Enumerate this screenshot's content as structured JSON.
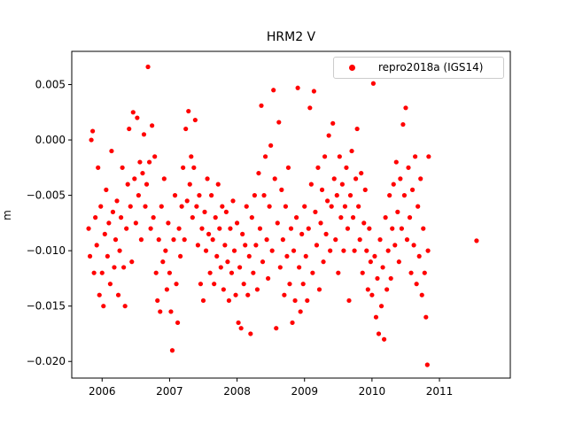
{
  "chart_data": {
    "type": "scatter",
    "title": "HRM2 V",
    "xlabel": "",
    "ylabel": "m",
    "xlim": [
      2005.55,
      2012.05
    ],
    "ylim": [
      -0.0215,
      0.008
    ],
    "x_ticks": [
      {
        "value": 2006,
        "label": "2006"
      },
      {
        "value": 2007,
        "label": "2007"
      },
      {
        "value": 2008,
        "label": "2008"
      },
      {
        "value": 2009,
        "label": "2009"
      },
      {
        "value": 2010,
        "label": "2010"
      },
      {
        "value": 2011,
        "label": "2011"
      }
    ],
    "y_ticks": [
      {
        "value": 0.005,
        "label": "0.005"
      },
      {
        "value": 0.0,
        "label": "0.000"
      },
      {
        "value": -0.005,
        "label": "−0.005"
      },
      {
        "value": -0.01,
        "label": "−0.010"
      },
      {
        "value": -0.015,
        "label": "−0.015"
      },
      {
        "value": -0.02,
        "label": "−0.020"
      }
    ],
    "grid": false,
    "legend_position": "top-right",
    "series": [
      {
        "name": "repro2018a (IGS14)",
        "color": "#ff0000",
        "marker": "dot",
        "points": [
          [
            2005.8,
            -0.008
          ],
          [
            2005.82,
            -0.0105
          ],
          [
            2005.84,
            0.0
          ],
          [
            2005.86,
            0.0008
          ],
          [
            2005.88,
            -0.012
          ],
          [
            2005.9,
            -0.007
          ],
          [
            2005.92,
            -0.0095
          ],
          [
            2005.94,
            -0.0025
          ],
          [
            2005.96,
            -0.014
          ],
          [
            2005.98,
            -0.006
          ],
          [
            2006.0,
            -0.012
          ],
          [
            2006.02,
            -0.015
          ],
          [
            2006.04,
            -0.0085
          ],
          [
            2006.06,
            -0.0045
          ],
          [
            2006.08,
            -0.0105
          ],
          [
            2006.1,
            -0.0075
          ],
          [
            2006.12,
            -0.013
          ],
          [
            2006.14,
            -0.001
          ],
          [
            2006.16,
            -0.0065
          ],
          [
            2006.18,
            -0.0115
          ],
          [
            2006.2,
            -0.009
          ],
          [
            2006.22,
            -0.0055
          ],
          [
            2006.24,
            -0.014
          ],
          [
            2006.26,
            -0.01
          ],
          [
            2006.28,
            -0.007
          ],
          [
            2006.3,
            -0.0025
          ],
          [
            2006.32,
            -0.0115
          ],
          [
            2006.34,
            -0.015
          ],
          [
            2006.36,
            -0.008
          ],
          [
            2006.38,
            -0.004
          ],
          [
            2006.4,
            0.001
          ],
          [
            2006.42,
            -0.006
          ],
          [
            2006.44,
            -0.011
          ],
          [
            2006.46,
            0.0025
          ],
          [
            2006.48,
            -0.0035
          ],
          [
            2006.5,
            -0.0075
          ],
          [
            2006.52,
            0.002
          ],
          [
            2006.54,
            -0.005
          ],
          [
            2006.56,
            -0.002
          ],
          [
            2006.58,
            -0.009
          ],
          [
            2006.6,
            -0.003
          ],
          [
            2006.62,
            0.0005
          ],
          [
            2006.64,
            -0.006
          ],
          [
            2006.66,
            -0.004
          ],
          [
            2006.68,
            0.0066
          ],
          [
            2006.7,
            -0.002
          ],
          [
            2006.72,
            -0.008
          ],
          [
            2006.74,
            0.0013
          ],
          [
            2006.76,
            -0.007
          ],
          [
            2006.78,
            -0.0015
          ],
          [
            2006.8,
            -0.012
          ],
          [
            2006.82,
            -0.0145
          ],
          [
            2006.84,
            -0.009
          ],
          [
            2006.86,
            -0.0155
          ],
          [
            2006.88,
            -0.006
          ],
          [
            2006.9,
            -0.011
          ],
          [
            2006.92,
            -0.0035
          ],
          [
            2006.94,
            -0.01
          ],
          [
            2006.96,
            -0.0135
          ],
          [
            2006.98,
            -0.0075
          ],
          [
            2007.0,
            -0.012
          ],
          [
            2007.02,
            -0.0155
          ],
          [
            2007.04,
            -0.019
          ],
          [
            2007.06,
            -0.009
          ],
          [
            2007.08,
            -0.005
          ],
          [
            2007.1,
            -0.013
          ],
          [
            2007.12,
            -0.0165
          ],
          [
            2007.14,
            -0.008
          ],
          [
            2007.16,
            -0.0105
          ],
          [
            2007.18,
            -0.006
          ],
          [
            2007.2,
            -0.0025
          ],
          [
            2007.22,
            -0.009
          ],
          [
            2007.24,
            0.001
          ],
          [
            2007.26,
            -0.0055
          ],
          [
            2007.28,
            0.0026
          ],
          [
            2007.3,
            -0.004
          ],
          [
            2007.32,
            -0.0015
          ],
          [
            2007.34,
            -0.007
          ],
          [
            2007.36,
            -0.0025
          ],
          [
            2007.38,
            0.0018
          ],
          [
            2007.4,
            -0.006
          ],
          [
            2007.42,
            -0.0095
          ],
          [
            2007.44,
            -0.005
          ],
          [
            2007.46,
            -0.013
          ],
          [
            2007.48,
            -0.008
          ],
          [
            2007.5,
            -0.0145
          ],
          [
            2007.52,
            -0.0065
          ],
          [
            2007.54,
            -0.01
          ],
          [
            2007.56,
            -0.0035
          ],
          [
            2007.58,
            -0.0085
          ],
          [
            2007.6,
            -0.012
          ],
          [
            2007.62,
            -0.005
          ],
          [
            2007.64,
            -0.009
          ],
          [
            2007.66,
            -0.013
          ],
          [
            2007.68,
            -0.007
          ],
          [
            2007.7,
            -0.0105
          ],
          [
            2007.72,
            -0.004
          ],
          [
            2007.74,
            -0.008
          ],
          [
            2007.76,
            -0.0115
          ],
          [
            2007.78,
            -0.006
          ],
          [
            2007.8,
            -0.0135
          ],
          [
            2007.82,
            -0.0095
          ],
          [
            2007.84,
            -0.0065
          ],
          [
            2007.86,
            -0.011
          ],
          [
            2007.88,
            -0.0145
          ],
          [
            2007.9,
            -0.008
          ],
          [
            2007.92,
            -0.012
          ],
          [
            2007.94,
            -0.0055
          ],
          [
            2007.96,
            -0.01
          ],
          [
            2007.98,
            -0.014
          ],
          [
            2008.0,
            -0.0075
          ],
          [
            2008.02,
            -0.0165
          ],
          [
            2008.04,
            -0.0115
          ],
          [
            2008.06,
            -0.017
          ],
          [
            2008.08,
            -0.0085
          ],
          [
            2008.1,
            -0.013
          ],
          [
            2008.12,
            -0.0095
          ],
          [
            2008.14,
            -0.006
          ],
          [
            2008.16,
            -0.014
          ],
          [
            2008.18,
            -0.0105
          ],
          [
            2008.2,
            -0.0175
          ],
          [
            2008.22,
            -0.007
          ],
          [
            2008.24,
            -0.012
          ],
          [
            2008.26,
            -0.005
          ],
          [
            2008.28,
            -0.0095
          ],
          [
            2008.3,
            -0.0135
          ],
          [
            2008.32,
            -0.003
          ],
          [
            2008.34,
            -0.008
          ],
          [
            2008.36,
            0.0031
          ],
          [
            2008.38,
            -0.011
          ],
          [
            2008.4,
            -0.005
          ],
          [
            2008.42,
            -0.0015
          ],
          [
            2008.44,
            -0.009
          ],
          [
            2008.46,
            -0.0125
          ],
          [
            2008.48,
            -0.006
          ],
          [
            2008.5,
            -0.0005
          ],
          [
            2008.52,
            -0.01
          ],
          [
            2008.54,
            0.0045
          ],
          [
            2008.56,
            -0.0035
          ],
          [
            2008.58,
            -0.017
          ],
          [
            2008.6,
            -0.0075
          ],
          [
            2008.62,
            0.0016
          ],
          [
            2008.64,
            -0.0115
          ],
          [
            2008.66,
            -0.0045
          ],
          [
            2008.68,
            -0.009
          ],
          [
            2008.7,
            -0.014
          ],
          [
            2008.72,
            -0.006
          ],
          [
            2008.74,
            -0.0105
          ],
          [
            2008.76,
            -0.0025
          ],
          [
            2008.78,
            -0.013
          ],
          [
            2008.8,
            -0.008
          ],
          [
            2008.82,
            -0.0165
          ],
          [
            2008.84,
            -0.01
          ],
          [
            2008.86,
            -0.0145
          ],
          [
            2008.88,
            -0.007
          ],
          [
            2008.9,
            0.0047
          ],
          [
            2008.92,
            -0.0115
          ],
          [
            2008.94,
            -0.0155
          ],
          [
            2008.96,
            -0.0085
          ],
          [
            2008.98,
            -0.013
          ],
          [
            2009.0,
            -0.006
          ],
          [
            2009.02,
            -0.0105
          ],
          [
            2009.04,
            -0.0145
          ],
          [
            2009.06,
            -0.008
          ],
          [
            2009.08,
            0.0029
          ],
          [
            2009.1,
            -0.004
          ],
          [
            2009.12,
            -0.012
          ],
          [
            2009.14,
            0.0044
          ],
          [
            2009.16,
            -0.0065
          ],
          [
            2009.18,
            -0.0095
          ],
          [
            2009.2,
            -0.0025
          ],
          [
            2009.22,
            -0.0135
          ],
          [
            2009.24,
            -0.0075
          ],
          [
            2009.26,
            -0.0045
          ],
          [
            2009.28,
            -0.011
          ],
          [
            2009.3,
            -0.0015
          ],
          [
            2009.32,
            -0.0085
          ],
          [
            2009.34,
            -0.0055
          ],
          [
            2009.36,
            0.0004
          ],
          [
            2009.38,
            -0.01
          ],
          [
            2009.4,
            -0.006
          ],
          [
            2009.42,
            0.0015
          ],
          [
            2009.44,
            -0.0035
          ],
          [
            2009.46,
            -0.009
          ],
          [
            2009.48,
            -0.005
          ],
          [
            2009.5,
            -0.012
          ],
          [
            2009.52,
            -0.0015
          ],
          [
            2009.54,
            -0.007
          ],
          [
            2009.56,
            -0.004
          ],
          [
            2009.58,
            -0.01
          ],
          [
            2009.6,
            -0.006
          ],
          [
            2009.62,
            -0.0025
          ],
          [
            2009.64,
            -0.008
          ],
          [
            2009.66,
            -0.0145
          ],
          [
            2009.68,
            -0.005
          ],
          [
            2009.7,
            -0.001
          ],
          [
            2009.72,
            -0.007
          ],
          [
            2009.74,
            -0.01
          ],
          [
            2009.76,
            -0.0035
          ],
          [
            2009.78,
            0.001
          ],
          [
            2009.8,
            -0.006
          ],
          [
            2009.82,
            -0.009
          ],
          [
            2009.84,
            -0.003
          ],
          [
            2009.86,
            -0.012
          ],
          [
            2009.88,
            -0.0075
          ],
          [
            2009.9,
            -0.0045
          ],
          [
            2009.92,
            -0.01
          ],
          [
            2009.94,
            -0.0135
          ],
          [
            2009.96,
            -0.008
          ],
          [
            2009.98,
            -0.011
          ],
          [
            2010.0,
            -0.014
          ],
          [
            2010.02,
            0.0051
          ],
          [
            2010.04,
            -0.0105
          ],
          [
            2010.06,
            -0.016
          ],
          [
            2010.08,
            -0.0125
          ],
          [
            2010.1,
            -0.0175
          ],
          [
            2010.12,
            -0.009
          ],
          [
            2010.14,
            -0.015
          ],
          [
            2010.16,
            -0.0115
          ],
          [
            2010.18,
            -0.018
          ],
          [
            2010.2,
            -0.007
          ],
          [
            2010.22,
            -0.0135
          ],
          [
            2010.24,
            -0.01
          ],
          [
            2010.26,
            -0.005
          ],
          [
            2010.28,
            -0.0125
          ],
          [
            2010.3,
            -0.008
          ],
          [
            2010.32,
            -0.004
          ],
          [
            2010.34,
            -0.0095
          ],
          [
            2010.36,
            -0.002
          ],
          [
            2010.38,
            -0.0065
          ],
          [
            2010.4,
            -0.011
          ],
          [
            2010.42,
            -0.0035
          ],
          [
            2010.44,
            -0.008
          ],
          [
            2010.46,
            0.0014
          ],
          [
            2010.48,
            -0.005
          ],
          [
            2010.5,
            0.0029
          ],
          [
            2010.52,
            -0.009
          ],
          [
            2010.54,
            -0.0025
          ],
          [
            2010.56,
            -0.007
          ],
          [
            2010.58,
            -0.012
          ],
          [
            2010.6,
            -0.0045
          ],
          [
            2010.62,
            -0.0095
          ],
          [
            2010.64,
            -0.0015
          ],
          [
            2010.66,
            -0.013
          ],
          [
            2010.68,
            -0.006
          ],
          [
            2010.7,
            -0.0105
          ],
          [
            2010.72,
            -0.0035
          ],
          [
            2010.74,
            -0.014
          ],
          [
            2010.76,
            -0.008
          ],
          [
            2010.78,
            -0.012
          ],
          [
            2010.8,
            -0.016
          ],
          [
            2010.82,
            -0.0203
          ],
          [
            2010.83,
            -0.01
          ],
          [
            2010.84,
            -0.0015
          ],
          [
            2011.55,
            -0.0091
          ]
        ]
      }
    ]
  }
}
